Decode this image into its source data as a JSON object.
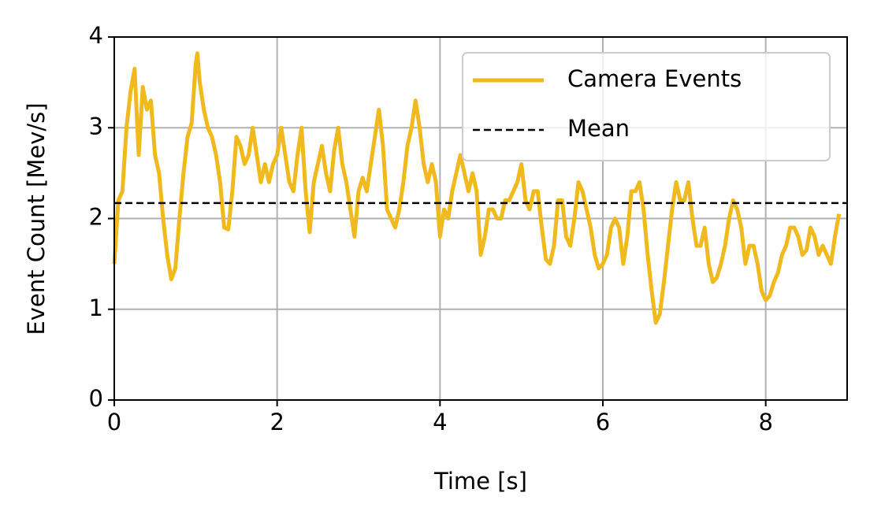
{
  "chart_data": {
    "type": "line",
    "xlabel": "Time [s]",
    "ylabel": "Event Count [Mev/s]",
    "xlim": [
      0,
      9
    ],
    "xticks": [
      0,
      2,
      4,
      6,
      8
    ],
    "ylim": [
      0,
      4
    ],
    "yticks": [
      0,
      1,
      2,
      3,
      4
    ],
    "grid": true,
    "legend": "upper right",
    "x": [
      0,
      0.05,
      0.1,
      0.15,
      0.2,
      0.25,
      0.3,
      0.35,
      0.4,
      0.45,
      0.5,
      0.55,
      0.6,
      0.65,
      0.7,
      0.75,
      0.8,
      0.85,
      0.9,
      0.95,
      1.0,
      1.02,
      1.05,
      1.1,
      1.15,
      1.2,
      1.25,
      1.3,
      1.35,
      1.4,
      1.45,
      1.5,
      1.55,
      1.6,
      1.65,
      1.7,
      1.75,
      1.8,
      1.85,
      1.9,
      1.95,
      2.0,
      2.05,
      2.1,
      2.15,
      2.2,
      2.25,
      2.3,
      2.35,
      2.4,
      2.45,
      2.5,
      2.55,
      2.6,
      2.65,
      2.7,
      2.75,
      2.8,
      2.85,
      2.9,
      2.95,
      3.0,
      3.05,
      3.1,
      3.15,
      3.2,
      3.25,
      3.3,
      3.35,
      3.4,
      3.45,
      3.5,
      3.55,
      3.6,
      3.65,
      3.7,
      3.75,
      3.8,
      3.85,
      3.9,
      3.95,
      4.0,
      4.05,
      4.1,
      4.15,
      4.2,
      4.25,
      4.3,
      4.35,
      4.4,
      4.45,
      4.5,
      4.55,
      4.6,
      4.65,
      4.7,
      4.75,
      4.8,
      4.85,
      4.9,
      4.95,
      5.0,
      5.05,
      5.1,
      5.15,
      5.2,
      5.25,
      5.3,
      5.35,
      5.4,
      5.45,
      5.5,
      5.55,
      5.6,
      5.65,
      5.7,
      5.75,
      5.8,
      5.85,
      5.9,
      5.95,
      6.0,
      6.05,
      6.1,
      6.15,
      6.2,
      6.25,
      6.3,
      6.35,
      6.4,
      6.45,
      6.5,
      6.55,
      6.6,
      6.65,
      6.7,
      6.75,
      6.8,
      6.85,
      6.9,
      6.95,
      7.0,
      7.05,
      7.1,
      7.15,
      7.2,
      7.25,
      7.3,
      7.35,
      7.4,
      7.45,
      7.5,
      7.55,
      7.6,
      7.65,
      7.7,
      7.75,
      7.8,
      7.85,
      7.9,
      7.95,
      8.0,
      8.05,
      8.1,
      8.15,
      8.2,
      8.25,
      8.3,
      8.35,
      8.4,
      8.45,
      8.5,
      8.55,
      8.6,
      8.65,
      8.7,
      8.75,
      8.8,
      8.85,
      8.9
    ],
    "series": [
      {
        "name": "Camera Events",
        "color": "#f0ba1e",
        "values": [
          1.5,
          2.2,
          2.3,
          3.0,
          3.4,
          3.65,
          2.7,
          3.45,
          3.2,
          3.3,
          2.7,
          2.5,
          2.0,
          1.6,
          1.33,
          1.45,
          2.0,
          2.5,
          2.9,
          3.05,
          3.7,
          3.82,
          3.5,
          3.2,
          3.0,
          2.9,
          2.7,
          2.4,
          1.9,
          1.88,
          2.3,
          2.9,
          2.8,
          2.6,
          2.7,
          3.0,
          2.7,
          2.4,
          2.6,
          2.4,
          2.6,
          2.7,
          3.0,
          2.7,
          2.4,
          2.3,
          2.7,
          3.0,
          2.3,
          1.85,
          2.4,
          2.6,
          2.8,
          2.5,
          2.3,
          2.75,
          3.0,
          2.6,
          2.4,
          2.1,
          1.8,
          2.3,
          2.45,
          2.3,
          2.6,
          2.9,
          3.2,
          2.8,
          2.1,
          2.0,
          1.9,
          2.1,
          2.4,
          2.8,
          3.0,
          3.3,
          3.0,
          2.6,
          2.4,
          2.6,
          2.4,
          1.8,
          2.1,
          2.0,
          2.3,
          2.5,
          2.7,
          2.5,
          2.3,
          2.5,
          2.3,
          1.6,
          1.8,
          2.1,
          2.1,
          2.0,
          2.0,
          2.2,
          2.2,
          2.3,
          2.4,
          2.6,
          2.2,
          2.1,
          2.3,
          2.3,
          1.9,
          1.55,
          1.5,
          1.7,
          2.2,
          2.2,
          1.8,
          1.7,
          2.0,
          2.4,
          2.3,
          2.1,
          1.9,
          1.6,
          1.45,
          1.5,
          1.6,
          1.9,
          2.0,
          1.9,
          1.5,
          1.8,
          2.3,
          2.3,
          2.4,
          2.1,
          1.6,
          1.2,
          0.85,
          0.95,
          1.3,
          1.7,
          2.1,
          2.4,
          2.2,
          2.2,
          2.4,
          2.0,
          1.7,
          1.7,
          1.9,
          1.5,
          1.3,
          1.35,
          1.5,
          1.7,
          2.0,
          2.2,
          2.1,
          1.9,
          1.5,
          1.7,
          1.7,
          1.5,
          1.2,
          1.1,
          1.15,
          1.3,
          1.4,
          1.6,
          1.7,
          1.9,
          1.9,
          1.8,
          1.6,
          1.65,
          1.9,
          1.8,
          1.6,
          1.7,
          1.6,
          1.5,
          1.8,
          2.05
        ]
      }
    ],
    "mean": {
      "name": "Mean",
      "value": 2.17,
      "color": "#000000"
    }
  }
}
